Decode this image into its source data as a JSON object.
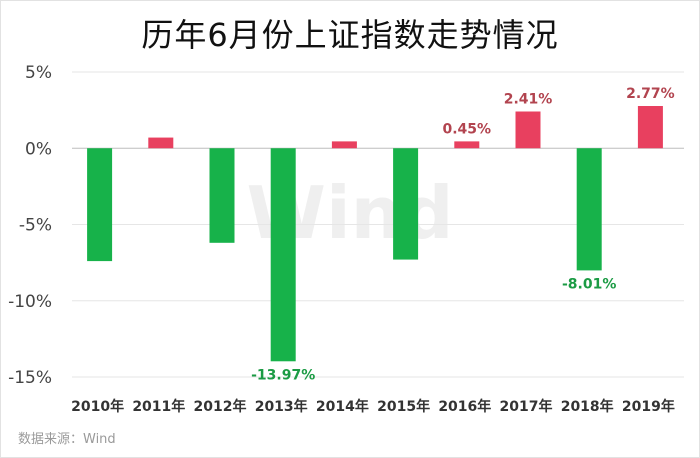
{
  "title": "历年6月份上证指数走势情况",
  "source": "数据来源：Wind",
  "watermark": "Wind",
  "chart_data": {
    "type": "bar",
    "title": "历年6月份上证指数走势情况",
    "categories": [
      "2010年",
      "2011年",
      "2012年",
      "2013年",
      "2014年",
      "2015年",
      "2016年",
      "2017年",
      "2018年",
      "2019年"
    ],
    "values": [
      -7.4,
      0.7,
      -6.2,
      -13.97,
      0.45,
      -7.3,
      0.45,
      2.41,
      -8.01,
      2.77
    ],
    "data_labels": [
      null,
      null,
      null,
      "-13.97%",
      null,
      null,
      "0.45%",
      "2.41%",
      "-8.01%",
      "2.77%"
    ],
    "yticks": [
      "5%",
      "0%",
      "-5%",
      "-10%",
      "-15%"
    ],
    "ytick_values": [
      5,
      0,
      -5,
      -10,
      -15
    ],
    "ylim": [
      -15,
      5
    ],
    "xlabel": "",
    "ylabel": "",
    "colors": {
      "positive": "#e8405f",
      "negative": "#17b24a",
      "positive_label": "#b2444f",
      "negative_label": "#1b9b44"
    },
    "grid": "horizontal"
  }
}
